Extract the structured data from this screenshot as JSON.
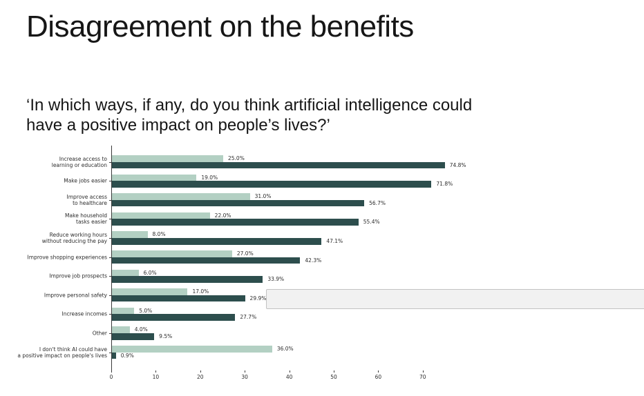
{
  "slide": {
    "title": "Disagreement on the benefits",
    "question_line1": "‘In which ways, if any, do you think artificial intelligence could",
    "question_line2": "have a positive impact on people’s lives?’"
  },
  "colors": {
    "series_light": "#b3d0c3",
    "series_dark": "#2d4e4d",
    "axis": "#3a3a3a",
    "text": "#2b2b2b",
    "overlay_fill": "#f1f1f1",
    "overlay_border": "#c2c2c2"
  },
  "chart_data": {
    "type": "bar",
    "orientation": "horizontal",
    "title": "",
    "xlabel": "",
    "ylabel": "",
    "grid": false,
    "legend": "none",
    "xlim": [
      0,
      78
    ],
    "x_ticks": [
      0,
      10,
      20,
      30,
      40,
      50,
      60,
      70
    ],
    "categories": [
      "Increase access to learning or education",
      "Make jobs easier",
      "Improve access to healthcare",
      "Make household tasks easier",
      "Reduce working hours without reducing the pay",
      "Improve shopping experiences",
      "Improve job prospects",
      "Improve personal safety",
      "Increase incomes",
      "Other",
      "I don't think AI could have a positive impact on people's lives"
    ],
    "category_label_lines": [
      [
        "Increase access to",
        "learning or education"
      ],
      [
        "Make jobs easier"
      ],
      [
        "Improve access",
        "to healthcare"
      ],
      [
        "Make household",
        "tasks easier"
      ],
      [
        "Reduce working hours",
        "without reducing the pay"
      ],
      [
        "Improve shopping experiences"
      ],
      [
        "Improve job prospects"
      ],
      [
        "Improve personal safety"
      ],
      [
        "Increase incomes"
      ],
      [
        "Other"
      ],
      [
        "I don't think AI could have",
        "a positive impact on people's lives"
      ]
    ],
    "series": [
      {
        "name": "series-light",
        "color": "#b3d0c3",
        "values": [
          25.0,
          19.0,
          31.0,
          22.0,
          8.0,
          27.0,
          6.0,
          17.0,
          5.0,
          4.0,
          36.0
        ],
        "labels": [
          "25.0%",
          "19.0%",
          "31.0%",
          "22.0%",
          "8.0%",
          "27.0%",
          "6.0%",
          "17.0%",
          "5.0%",
          "4.0%",
          "36.0%"
        ]
      },
      {
        "name": "series-dark",
        "color": "#2d4e4d",
        "values": [
          74.8,
          71.8,
          56.7,
          55.4,
          47.1,
          42.3,
          33.9,
          29.9,
          27.7,
          9.5,
          0.9
        ],
        "labels": [
          "74.8%",
          "71.8%",
          "56.7%",
          "55.4%",
          "47.1%",
          "42.3%",
          "33.9%",
          "29.9%",
          "27.7%",
          "9.5%",
          "0.9%"
        ]
      }
    ]
  }
}
